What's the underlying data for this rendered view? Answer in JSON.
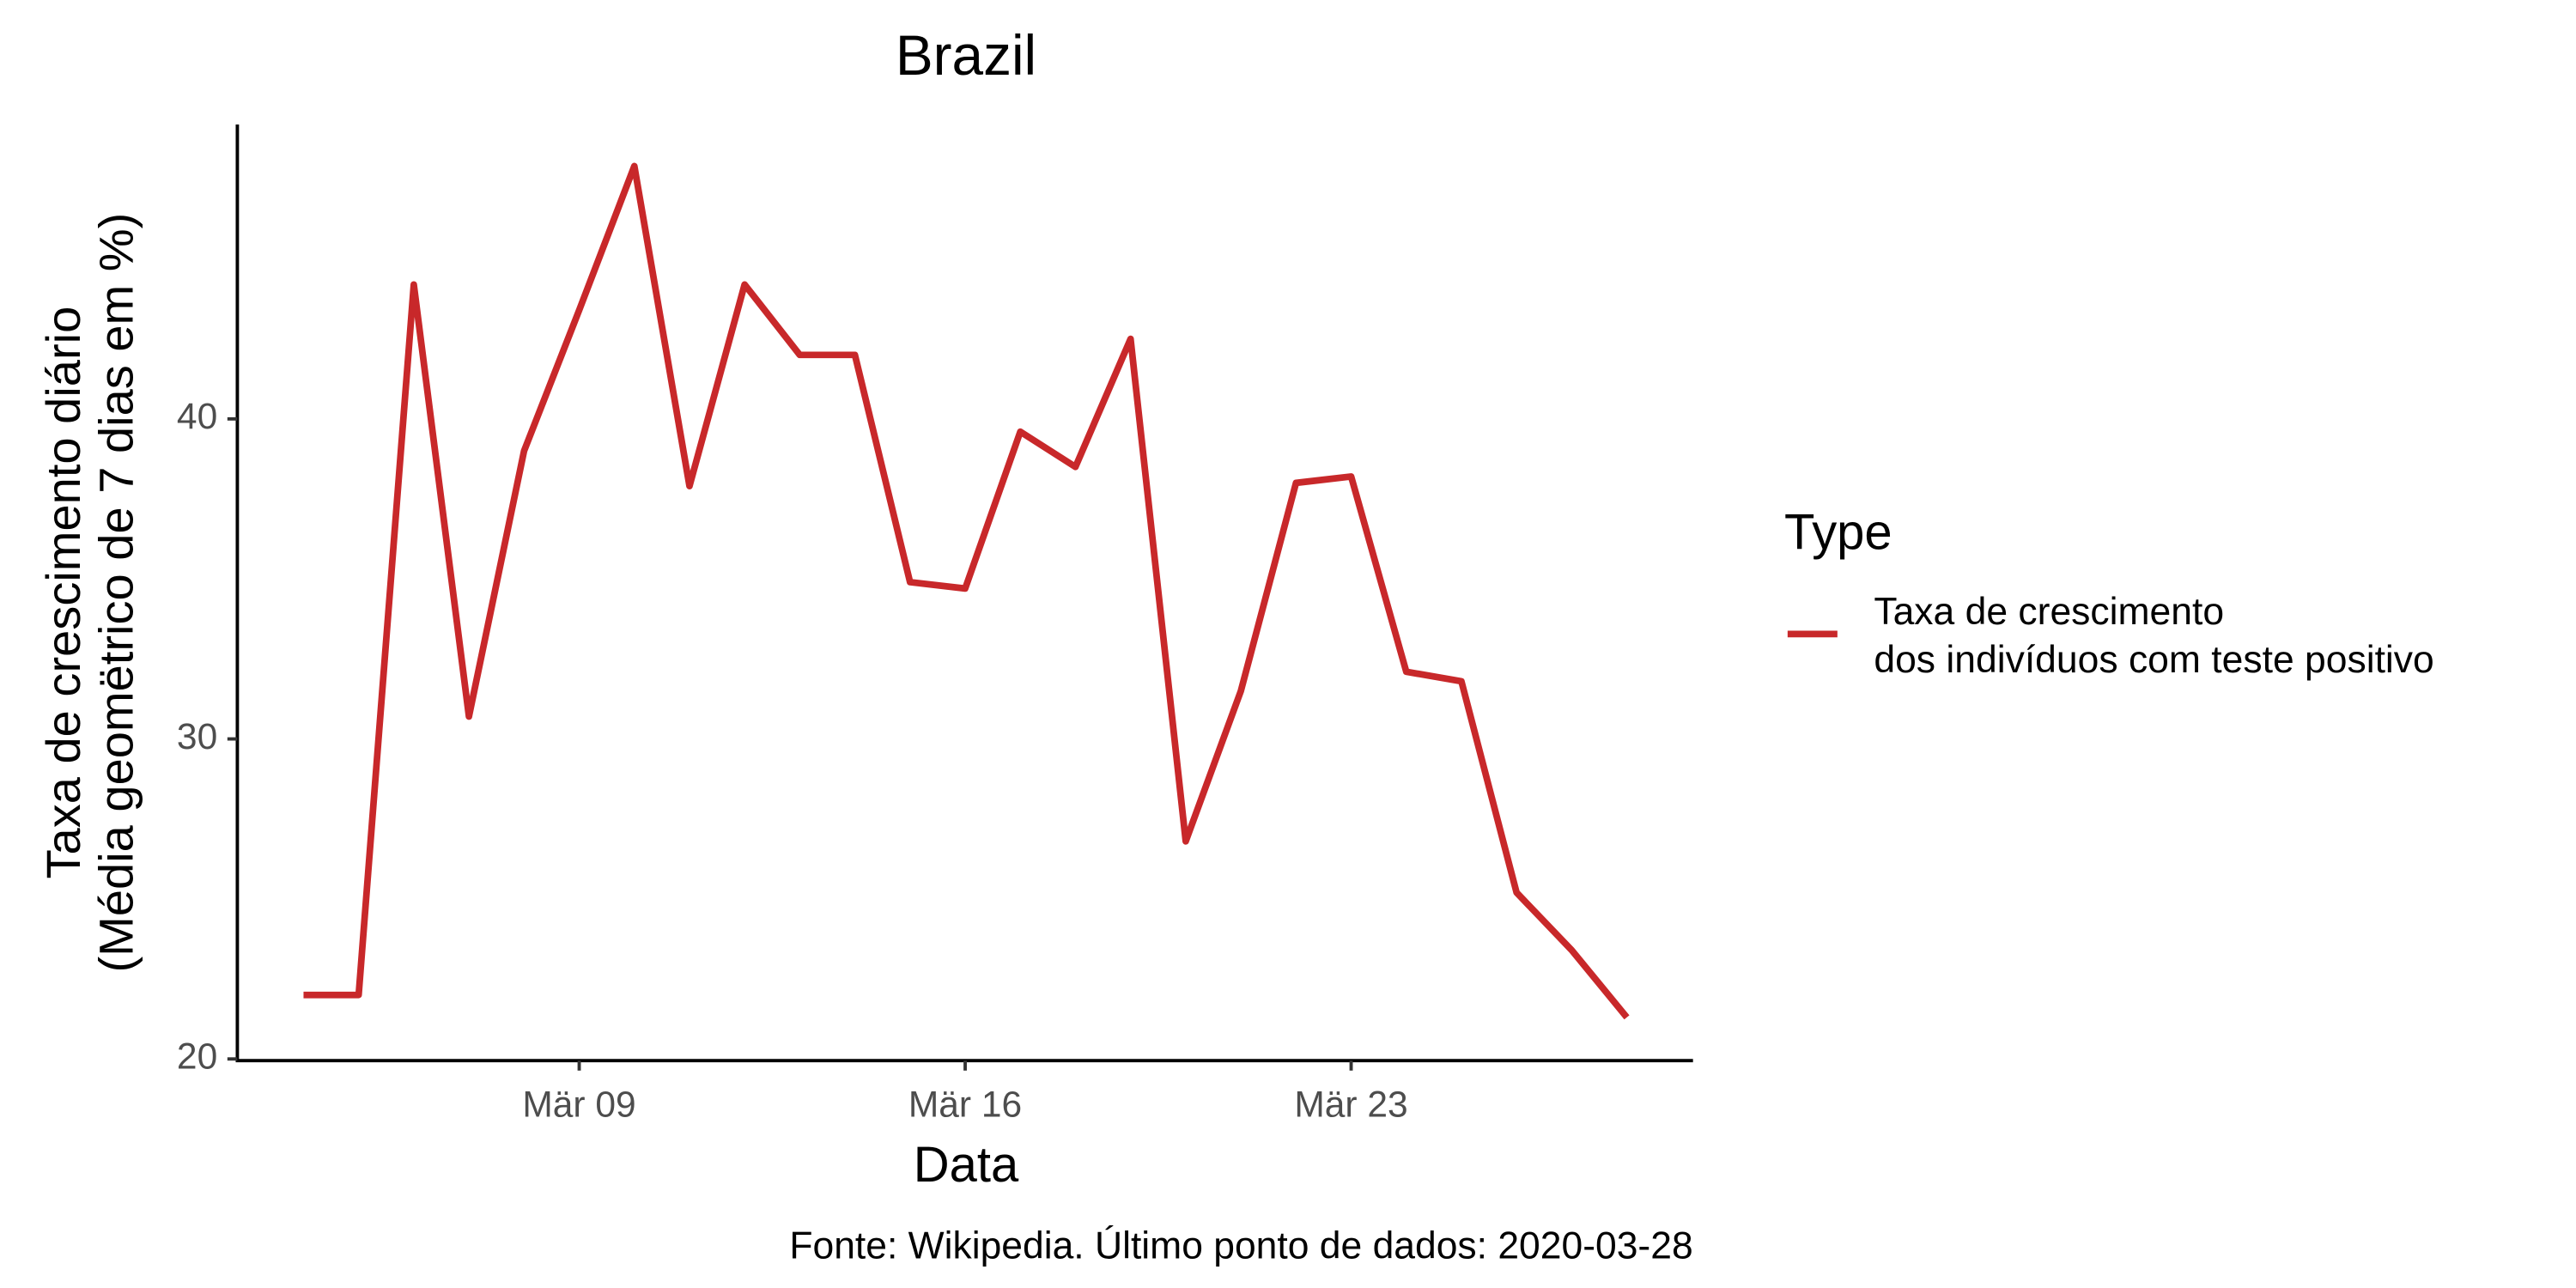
{
  "chart_data": {
    "type": "line",
    "title": "Brazil",
    "x_label": "Data",
    "y_label": "Taxa de crescimento diário\n(Média geomëtrico de 7 dias em %)",
    "caption": "Fonte: Wikipedia. Último ponto de dados: 2020-03-28",
    "legend_title": "Type",
    "legend_position": "right",
    "x": [
      "Mär 04",
      "Mär 05",
      "Mär 06",
      "Mär 07",
      "Mär 08",
      "Mär 09",
      "Mär 10",
      "Mär 11",
      "Mär 12",
      "Mär 13",
      "Mär 14",
      "Mär 15",
      "Mär 16",
      "Mär 17",
      "Mär 18",
      "Mär 19",
      "Mär 20",
      "Mär 21",
      "Mär 22",
      "Mär 23",
      "Mär 24",
      "Mär 25",
      "Mär 26",
      "Mär 27",
      "Mär 28"
    ],
    "xticks": [
      "Mär 09",
      "Mär 16",
      "Mär 23"
    ],
    "series": [
      {
        "name": "Taxa de crescimento\ndos indivíduos com teste positivo",
        "color": "#c8282a",
        "values": [
          22.0,
          22.0,
          44.2,
          30.7,
          39.0,
          43.4,
          47.9,
          37.9,
          44.2,
          42.0,
          42.0,
          34.9,
          34.7,
          39.6,
          38.5,
          42.5,
          26.8,
          31.5,
          38.0,
          38.2,
          32.1,
          31.8,
          25.2,
          23.4,
          21.3
        ]
      }
    ],
    "ylim": [
      20,
      49.2
    ],
    "yticks": [
      20,
      30,
      40
    ],
    "grid": false
  }
}
